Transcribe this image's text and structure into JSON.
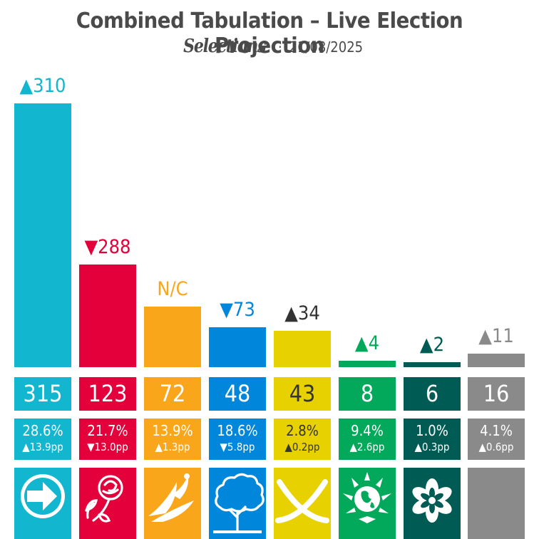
{
  "title": "Combined Tabulation – Live Election Projection",
  "brand": "Selections",
  "date": "21/08/2025",
  "chart_data": {
    "type": "bar",
    "title": "Combined Tabulation – Live Election Projection",
    "subtitle": "Selections · 21/08/2025",
    "ylim": [
      0,
      315
    ],
    "legend": "none",
    "grid": false,
    "parties": [
      {
        "seats": 315,
        "seat_change": "310",
        "change_dir": "up",
        "vote_share": "28.6%",
        "vote_change": "13.9pp",
        "vote_change_dir": "up",
        "color": "#12b6cf",
        "change_color": "#12b6cf",
        "logo": "arrow-logo-icon"
      },
      {
        "seats": 123,
        "seat_change": "288",
        "change_dir": "down",
        "vote_share": "21.7%",
        "vote_change": "13.0pp",
        "vote_change_dir": "down",
        "color": "#e4003b",
        "change_color": "#e4003b",
        "logo": "rose-logo-icon"
      },
      {
        "seats": 72,
        "seat_change": "N/C",
        "change_dir": "none",
        "vote_share": "13.9%",
        "vote_change": "1.3pp",
        "vote_change_dir": "up",
        "color": "#faa61a",
        "change_color": "#faa61a",
        "logo": "bird-logo-icon"
      },
      {
        "seats": 48,
        "seat_change": "73",
        "change_dir": "down",
        "vote_share": "18.6%",
        "vote_change": "5.8pp",
        "vote_change_dir": "down",
        "color": "#0087dc",
        "change_color": "#0087dc",
        "logo": "tree-logo-icon"
      },
      {
        "seats": 43,
        "seat_change": "34",
        "change_dir": "up",
        "vote_share": "2.8%",
        "vote_change": "0.2pp",
        "vote_change_dir": "up",
        "color": "#fdf38e",
        "bar_color": "#e8d100",
        "box_color": "#e8d100",
        "text_color": "#333333",
        "change_color": "#333333",
        "logo": "saltire-logo-icon"
      },
      {
        "seats": 8,
        "seat_change": "4",
        "change_dir": "up",
        "vote_share": "9.4%",
        "vote_change": "2.6pp",
        "vote_change_dir": "up",
        "color": "#02a95b",
        "change_color": "#02a95b",
        "logo": "globe-logo-icon"
      },
      {
        "seats": 6,
        "seat_change": "2",
        "change_dir": "up",
        "vote_share": "1.0%",
        "vote_change": "0.3pp",
        "vote_change_dir": "up",
        "color": "#005b54",
        "change_color": "#005b54",
        "logo": "flower-logo-icon"
      },
      {
        "seats": 16,
        "seat_change": "11",
        "change_dir": "up",
        "vote_share": "4.1%",
        "vote_change": "0.6pp",
        "vote_change_dir": "up",
        "color": "#8a8a8a",
        "change_color": "#8a8a8a",
        "logo": "blank-logo"
      }
    ]
  }
}
